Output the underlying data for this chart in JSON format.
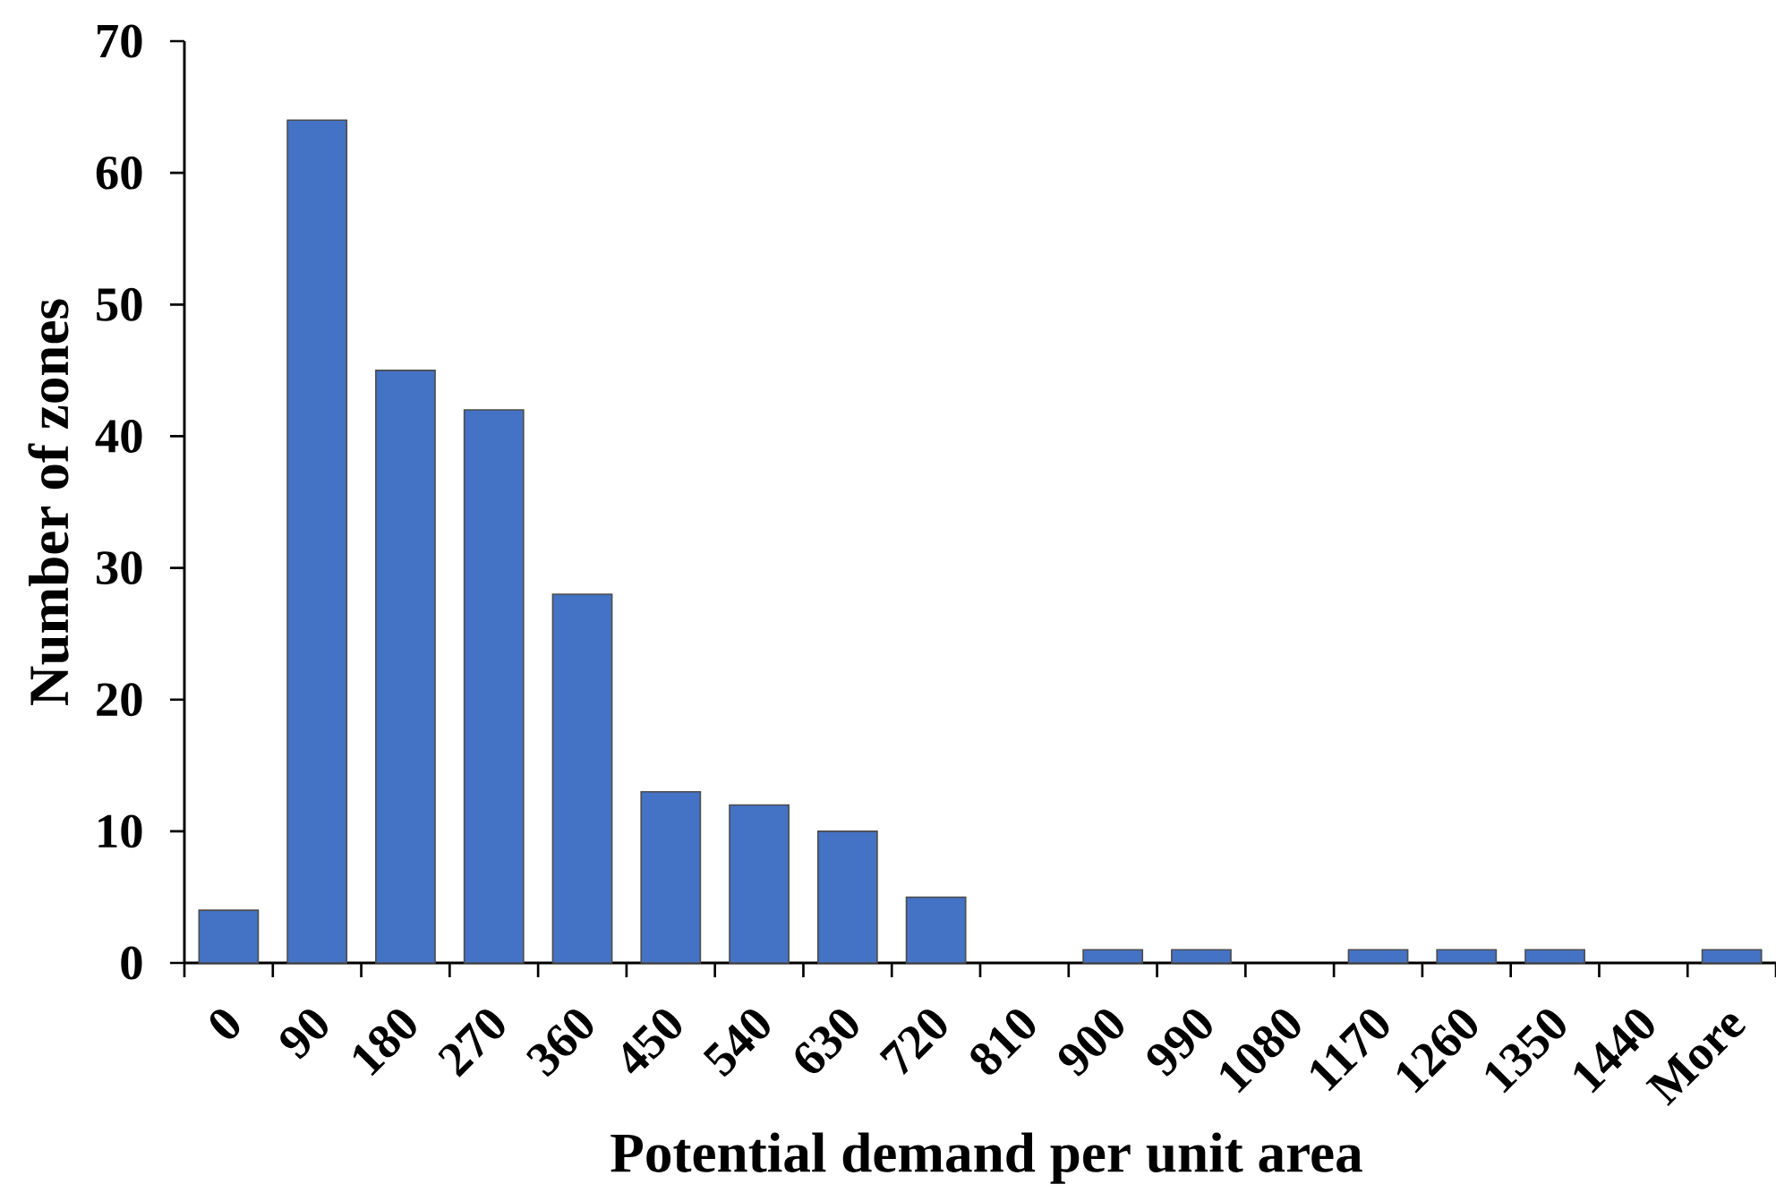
{
  "chart_data": {
    "type": "bar",
    "xlabel": "Potential demand per unit area",
    "ylabel": "Number of zones",
    "categories": [
      "0",
      "90",
      "180",
      "270",
      "360",
      "450",
      "540",
      "630",
      "720",
      "810",
      "900",
      "990",
      "1080",
      "1170",
      "1260",
      "1350",
      "1440",
      "More"
    ],
    "values": [
      4,
      64,
      45,
      42,
      28,
      13,
      12,
      10,
      5,
      0,
      1,
      1,
      0,
      1,
      1,
      1,
      0,
      1
    ],
    "color": "#4472c4",
    "ylim": [
      0,
      70
    ],
    "yticks": [
      0,
      10,
      20,
      30,
      40,
      50,
      60,
      70
    ]
  }
}
